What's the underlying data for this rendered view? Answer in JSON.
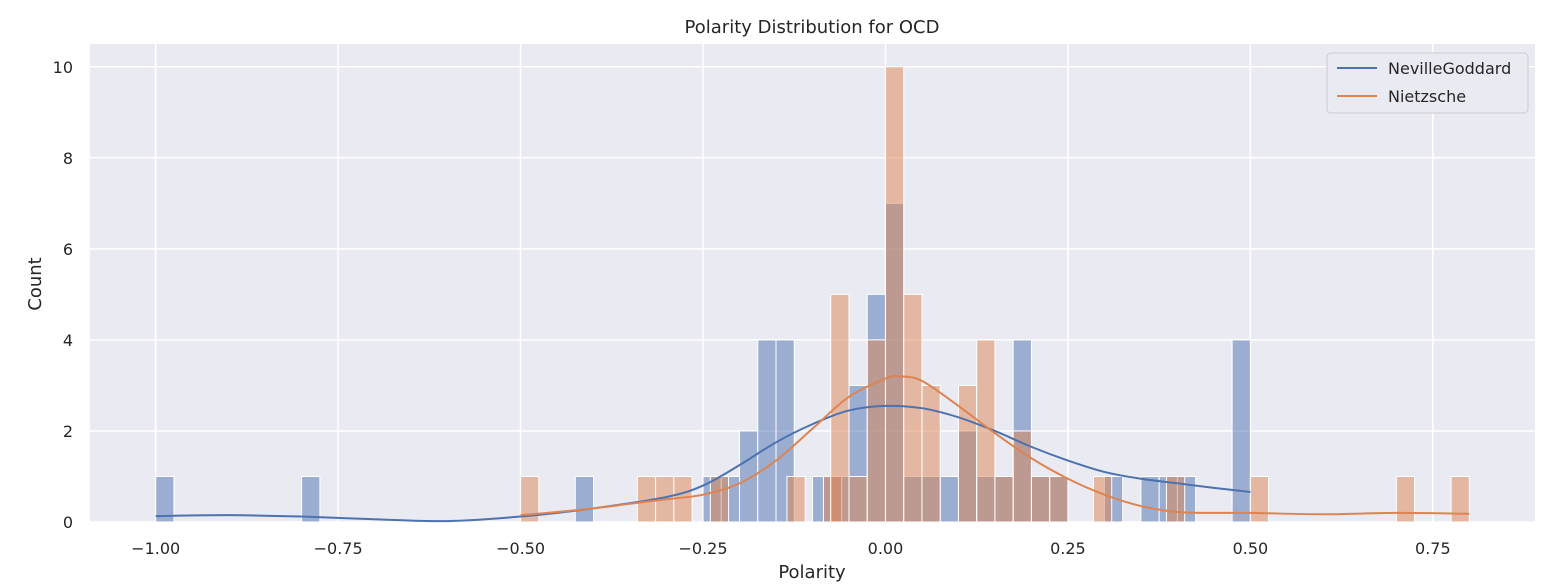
{
  "chart_data": {
    "type": "bar",
    "title": "Polarity Distribution for OCD",
    "xlabel": "Polarity",
    "ylabel": "Count",
    "xlim": [
      -1.09,
      0.89
    ],
    "ylim": [
      0,
      10.5
    ],
    "x_ticks": [
      -1.0,
      -0.75,
      -0.5,
      -0.25,
      0.0,
      0.25,
      0.5,
      0.75
    ],
    "x_tick_labels": [
      "−1.00",
      "−0.75",
      "−0.50",
      "−0.25",
      "0.00",
      "0.25",
      "0.50",
      "0.75"
    ],
    "y_ticks": [
      0,
      2,
      4,
      6,
      8,
      10
    ],
    "y_tick_labels": [
      "0",
      "2",
      "4",
      "6",
      "8",
      "10"
    ],
    "grid": true,
    "legend_position": "top-right",
    "colors": {
      "background": "#eaeaf2",
      "grid": "#ffffff",
      "NevilleGoddard": "#4c72b0",
      "Nietzsche": "#dd8452"
    },
    "series": [
      {
        "name": "NevilleGoddard",
        "bin_width": 0.025,
        "bins": [
          {
            "x0": -1.0,
            "count": 1
          },
          {
            "x0": -0.8,
            "count": 1
          },
          {
            "x0": -0.425,
            "count": 1
          },
          {
            "x0": -0.25,
            "count": 1
          },
          {
            "x0": -0.225,
            "count": 1
          },
          {
            "x0": -0.2,
            "count": 2
          },
          {
            "x0": -0.175,
            "count": 4
          },
          {
            "x0": -0.15,
            "count": 4
          },
          {
            "x0": -0.1,
            "count": 1
          },
          {
            "x0": -0.075,
            "count": 1
          },
          {
            "x0": -0.05,
            "count": 3
          },
          {
            "x0": -0.025,
            "count": 5
          },
          {
            "x0": 0.0,
            "count": 7
          },
          {
            "x0": 0.025,
            "count": 1
          },
          {
            "x0": 0.05,
            "count": 1
          },
          {
            "x0": 0.075,
            "count": 1
          },
          {
            "x0": 0.1,
            "count": 2
          },
          {
            "x0": 0.125,
            "count": 1
          },
          {
            "x0": 0.15,
            "count": 1
          },
          {
            "x0": 0.175,
            "count": 4
          },
          {
            "x0": 0.2,
            "count": 1
          },
          {
            "x0": 0.225,
            "count": 1
          },
          {
            "x0": 0.3,
            "count": 1
          },
          {
            "x0": 0.35,
            "count": 1
          },
          {
            "x0": 0.375,
            "count": 1
          },
          {
            "x0": 0.4,
            "count": 1
          },
          {
            "x0": 0.475,
            "count": 4
          }
        ],
        "kde": {
          "x": [
            -1.0,
            -0.9,
            -0.8,
            -0.7,
            -0.6,
            -0.5,
            -0.4,
            -0.3,
            -0.25,
            -0.2,
            -0.15,
            -0.1,
            -0.05,
            0.0,
            0.05,
            0.1,
            0.15,
            0.2,
            0.25,
            0.3,
            0.35,
            0.4,
            0.45,
            0.5
          ],
          "y": [
            0.13,
            0.15,
            0.12,
            0.06,
            0.02,
            0.12,
            0.3,
            0.55,
            0.8,
            1.25,
            1.75,
            2.15,
            2.45,
            2.55,
            2.5,
            2.3,
            2.0,
            1.65,
            1.35,
            1.1,
            0.95,
            0.85,
            0.75,
            0.66
          ]
        }
      },
      {
        "name": "Nietzsche",
        "bin_width": 0.025,
        "bins": [
          {
            "x0": -0.5,
            "count": 1
          },
          {
            "x0": -0.34,
            "count": 1
          },
          {
            "x0": -0.315,
            "count": 1
          },
          {
            "x0": -0.29,
            "count": 1
          },
          {
            "x0": -0.24,
            "count": 1
          },
          {
            "x0": -0.135,
            "count": 1
          },
          {
            "x0": -0.085,
            "count": 1
          },
          {
            "x0": -0.075,
            "count": 5
          },
          {
            "x0": -0.05,
            "count": 1
          },
          {
            "x0": -0.025,
            "count": 4
          },
          {
            "x0": 0.0,
            "count": 10
          },
          {
            "x0": 0.025,
            "count": 5
          },
          {
            "x0": 0.05,
            "count": 3
          },
          {
            "x0": 0.1,
            "count": 3
          },
          {
            "x0": 0.125,
            "count": 4
          },
          {
            "x0": 0.15,
            "count": 1
          },
          {
            "x0": 0.175,
            "count": 2
          },
          {
            "x0": 0.2,
            "count": 1
          },
          {
            "x0": 0.225,
            "count": 1
          },
          {
            "x0": 0.285,
            "count": 1
          },
          {
            "x0": 0.385,
            "count": 1
          },
          {
            "x0": 0.5,
            "count": 1
          },
          {
            "x0": 0.7,
            "count": 1
          },
          {
            "x0": 0.775,
            "count": 1
          }
        ],
        "kde": {
          "x": [
            -0.5,
            -0.45,
            -0.4,
            -0.35,
            -0.3,
            -0.25,
            -0.2,
            -0.15,
            -0.1,
            -0.05,
            0.0,
            0.02,
            0.05,
            0.1,
            0.15,
            0.2,
            0.25,
            0.3,
            0.35,
            0.4,
            0.45,
            0.5,
            0.6,
            0.7,
            0.8
          ],
          "y": [
            0.15,
            0.22,
            0.3,
            0.4,
            0.5,
            0.6,
            0.85,
            1.35,
            2.05,
            2.75,
            3.15,
            3.2,
            3.1,
            2.55,
            1.95,
            1.4,
            0.95,
            0.6,
            0.35,
            0.22,
            0.2,
            0.2,
            0.17,
            0.2,
            0.18
          ]
        }
      }
    ]
  }
}
